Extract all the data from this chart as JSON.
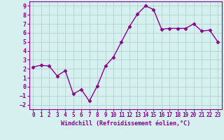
{
  "x": [
    0,
    1,
    2,
    3,
    4,
    5,
    6,
    7,
    8,
    9,
    10,
    11,
    12,
    13,
    14,
    15,
    16,
    17,
    18,
    19,
    20,
    21,
    22,
    23
  ],
  "y": [
    2.2,
    2.4,
    2.3,
    1.2,
    1.8,
    -0.8,
    -0.3,
    -1.6,
    0.1,
    2.3,
    3.3,
    5.0,
    6.7,
    8.1,
    9.0,
    8.6,
    6.4,
    6.5,
    6.5,
    6.5,
    7.0,
    6.2,
    6.3,
    5.0
  ],
  "line_color": "#8B008B",
  "marker": "D",
  "marker_size": 2.5,
  "bg_color": "#d6f0f0",
  "grid_color": "#aacccc",
  "xlabel": "Windchill (Refroidissement éolien,°C)",
  "xlim": [
    -0.5,
    23.5
  ],
  "ylim": [
    -2.5,
    9.5
  ],
  "yticks": [
    -2,
    -1,
    0,
    1,
    2,
    3,
    4,
    5,
    6,
    7,
    8,
    9
  ],
  "xticks": [
    0,
    1,
    2,
    3,
    4,
    5,
    6,
    7,
    8,
    9,
    10,
    11,
    12,
    13,
    14,
    15,
    16,
    17,
    18,
    19,
    20,
    21,
    22,
    23
  ],
  "axis_color": "#8B008B",
  "tick_color": "#8B008B",
  "label_color": "#8B008B",
  "tick_fontsize": 6,
  "xlabel_fontsize": 6,
  "linewidth": 1.0
}
